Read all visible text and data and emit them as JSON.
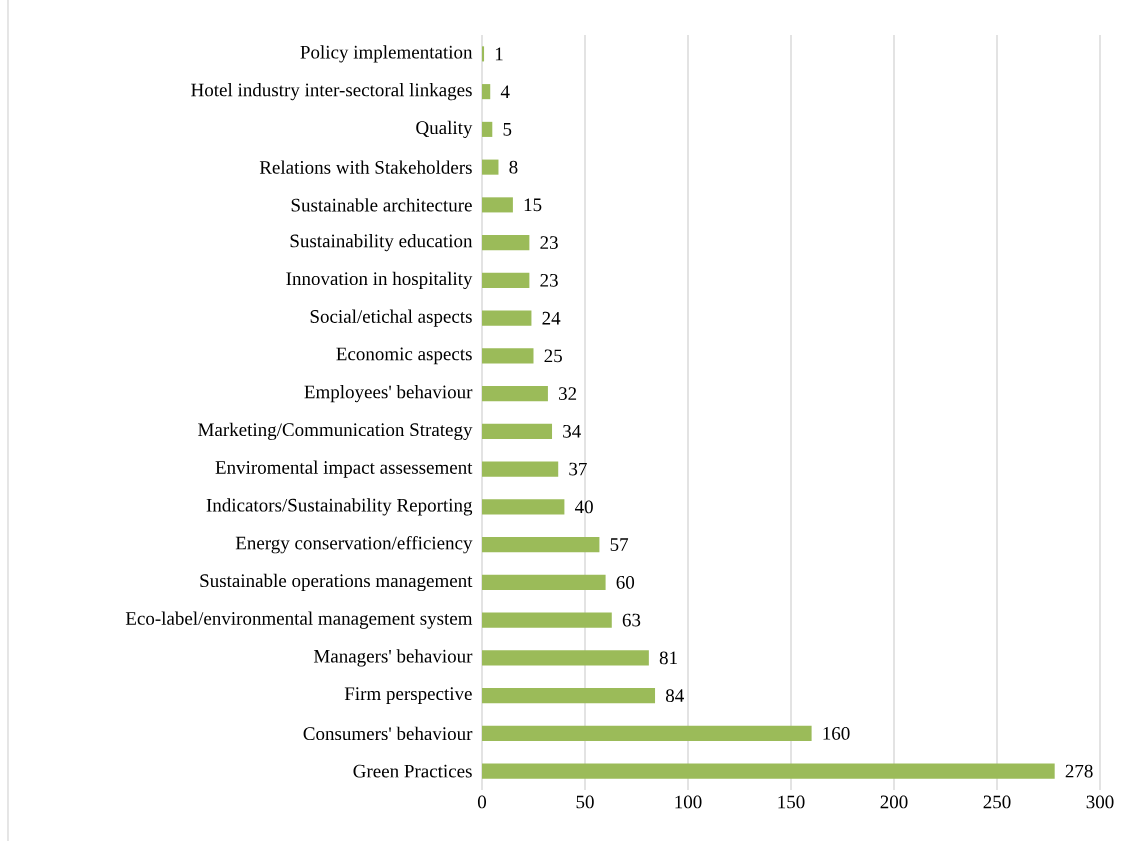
{
  "chart_data": {
    "type": "bar",
    "orientation": "horizontal",
    "categories": [
      "Policy implementation",
      "Hotel industry inter-sectoral linkages",
      "Quality",
      "Relations with Stakeholders",
      "Sustainable architecture",
      "Sustainability  education",
      "Innovation in hospitality",
      "Social/etichal aspects",
      "Economic aspects",
      "Employees' behaviour",
      "Marketing/Communication Strategy",
      "Enviromental impact assessement",
      "Indicators/Sustainability Reporting",
      "Energy conservation/efficiency",
      "Sustainable operations management",
      "Eco-label/environmental management system",
      "Managers' behaviour",
      "Firm perspective",
      "Consumers' behaviour",
      "Green Practices"
    ],
    "values": [
      1,
      4,
      5,
      8,
      15,
      23,
      23,
      24,
      25,
      32,
      34,
      37,
      40,
      57,
      60,
      63,
      81,
      84,
      160,
      278
    ],
    "color": "#9bbb59",
    "xlim": [
      0,
      300
    ],
    "xticks": [
      0,
      50,
      100,
      150,
      200,
      250,
      300
    ],
    "grid": "x",
    "data_labels": true
  }
}
